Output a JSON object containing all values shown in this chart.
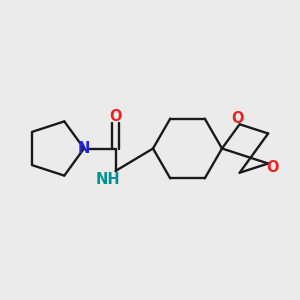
{
  "background_color": "#ebebeb",
  "bond_color": "#1a1a1a",
  "N_color": "#2222dd",
  "O_color": "#ee2222",
  "NH_color": "#009090",
  "line_width": 1.7,
  "font_size": 10.5,
  "figsize": [
    3.0,
    3.0
  ],
  "dpi": 100,
  "xlim": [
    0.0,
    1.0
  ],
  "ylim": [
    0.25,
    0.75
  ]
}
